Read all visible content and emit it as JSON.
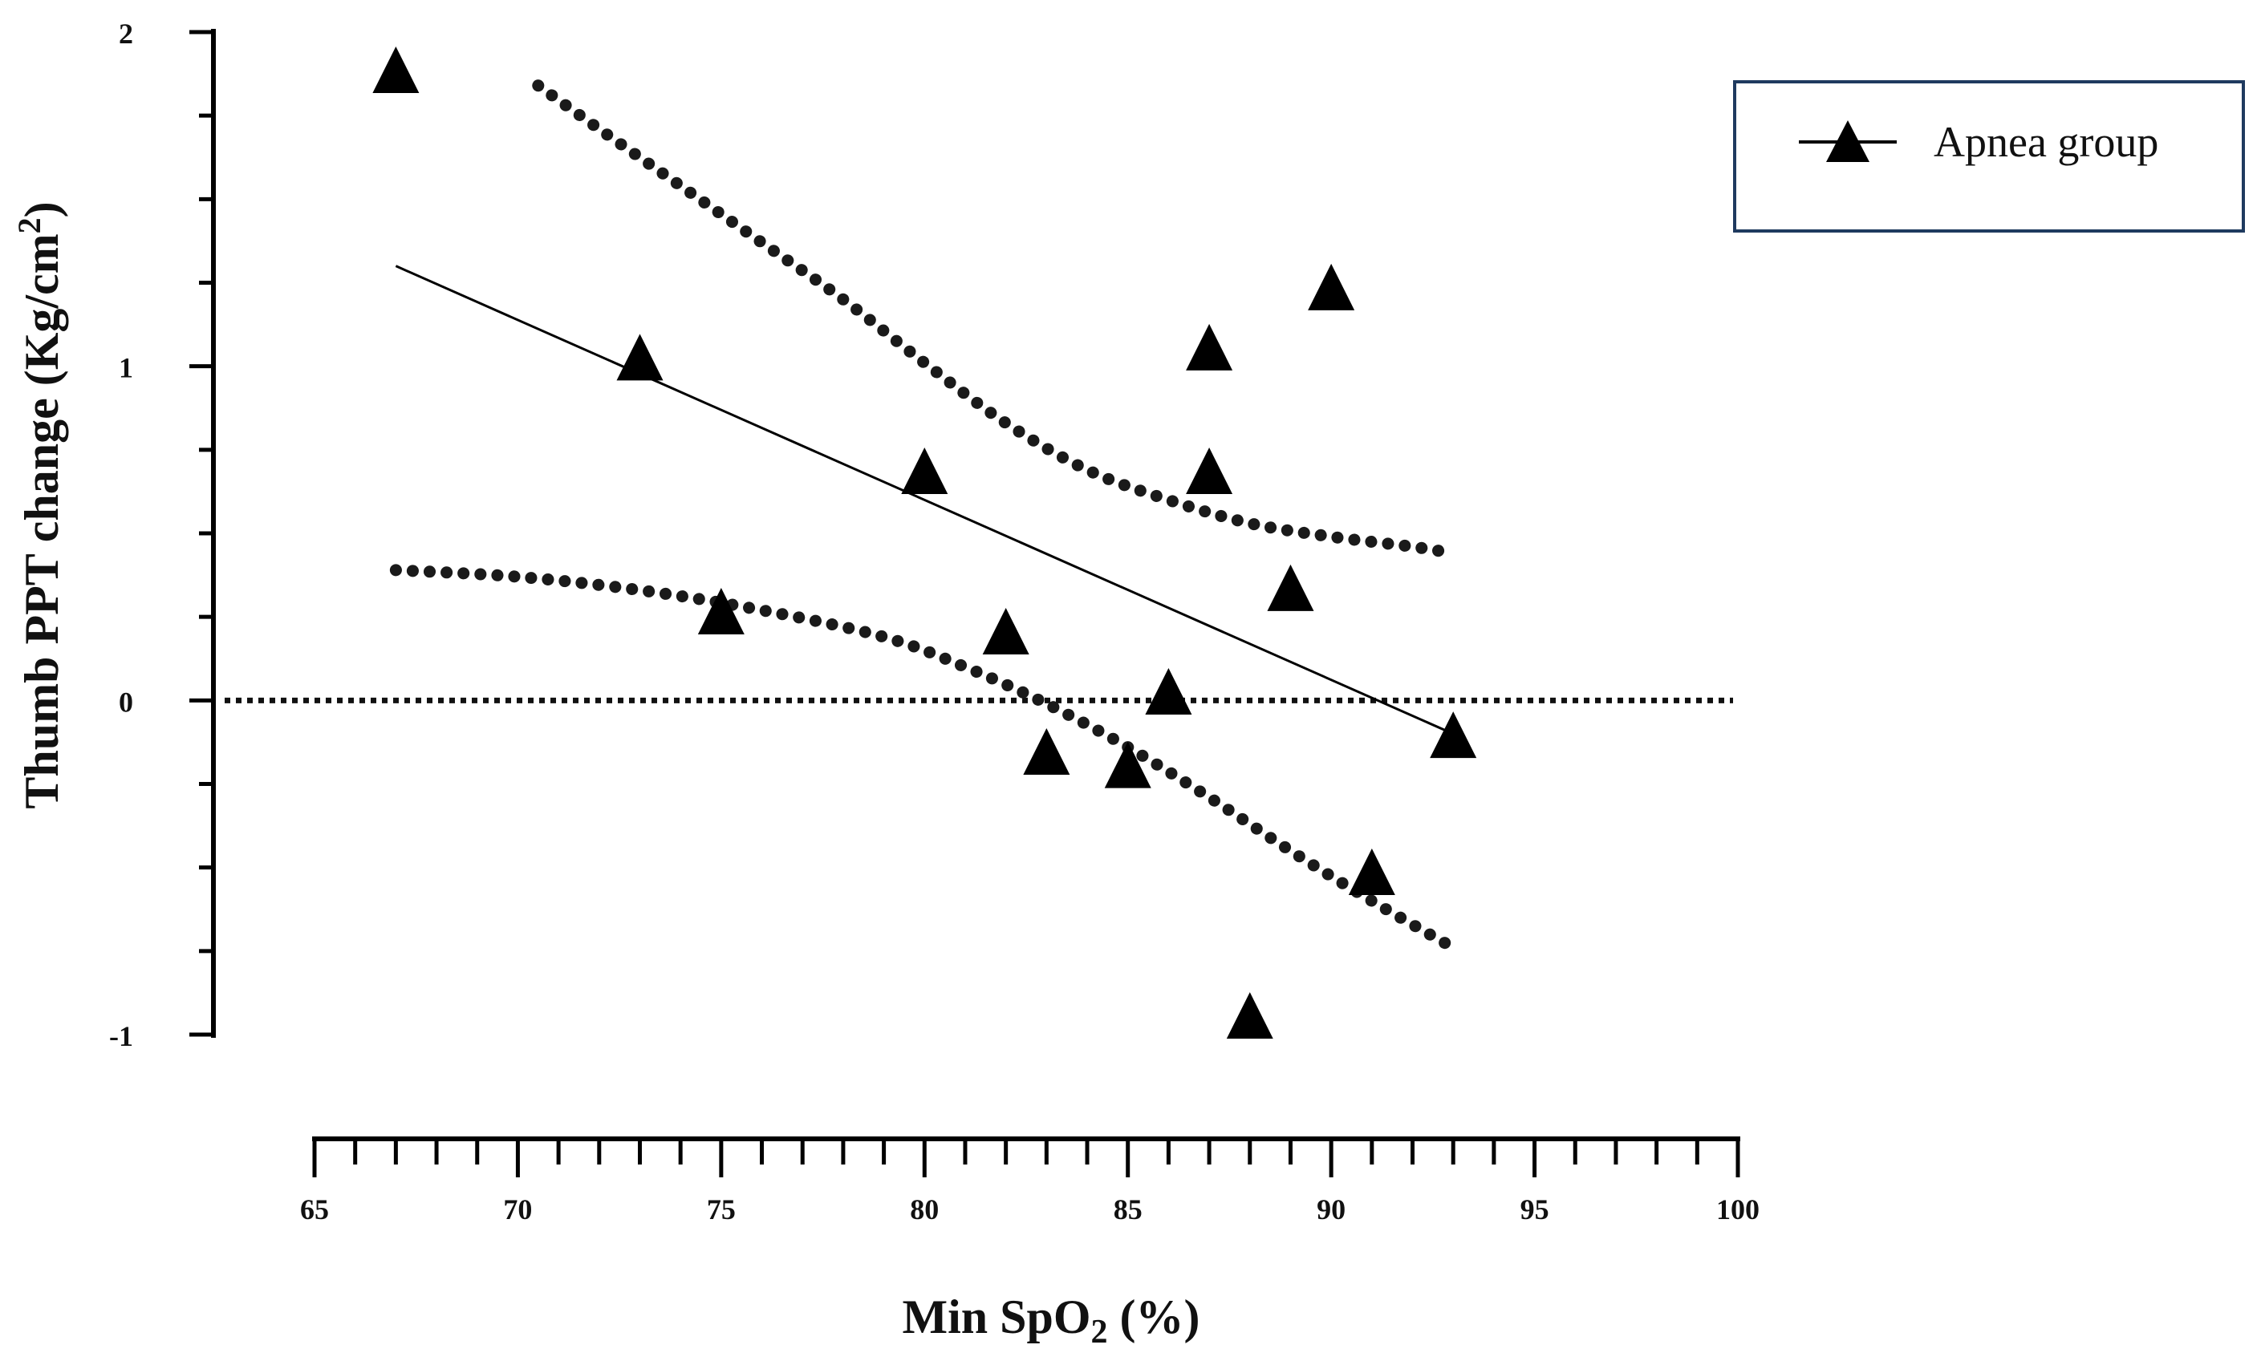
{
  "chart_data": {
    "type": "scatter",
    "xlabel_main": "Min SpO",
    "xlabel_sub": "2",
    "xlabel_tail": " (%)",
    "ylabel_main": "Thumb PPT change (Kg/cm",
    "ylabel_sup": "2",
    "ylabel_tail": ")",
    "xlim": [
      65,
      100
    ],
    "ylim": [
      -1,
      2
    ],
    "x_tick_labels": [
      "65",
      "70",
      "75",
      "80",
      "85",
      "90",
      "95",
      "100"
    ],
    "x_tick_values": [
      65,
      70,
      75,
      80,
      85,
      90,
      95,
      100
    ],
    "y_tick_labels": [
      "-1",
      "0",
      "1",
      "2"
    ],
    "y_tick_values": [
      -1,
      0,
      1,
      2
    ],
    "legend": {
      "label": "Apnea group",
      "position": "top-right"
    },
    "series": [
      {
        "name": "Apnea group",
        "marker": "triangle",
        "x": [
          67,
          73,
          75,
          80,
          82,
          83,
          85,
          86,
          87,
          87,
          88,
          89,
          90,
          91,
          93
        ],
        "y": [
          1.88,
          1.02,
          0.26,
          0.68,
          0.2,
          -0.16,
          -0.2,
          0.02,
          1.05,
          0.68,
          -0.95,
          0.33,
          1.23,
          -0.52,
          -0.11
        ]
      }
    ],
    "fit_line": {
      "x": [
        67,
        93
      ],
      "y": [
        1.3,
        -0.1
      ]
    },
    "ci_upper": {
      "x": [
        70.5,
        72,
        74,
        76,
        78,
        80,
        82,
        84,
        86,
        88,
        90,
        92,
        93
      ],
      "y": [
        1.84,
        1.71,
        1.54,
        1.37,
        1.2,
        1.01,
        0.83,
        0.69,
        0.6,
        0.53,
        0.49,
        0.46,
        0.44
      ]
    },
    "ci_lower": {
      "x": [
        67,
        70,
        73,
        76,
        79,
        81,
        83,
        85,
        87,
        89,
        91,
        93
      ],
      "y": [
        0.39,
        0.37,
        0.33,
        0.27,
        0.19,
        0.1,
        -0.01,
        -0.14,
        -0.29,
        -0.45,
        -0.6,
        -0.74
      ]
    },
    "reference_line": {
      "y": 0
    }
  }
}
